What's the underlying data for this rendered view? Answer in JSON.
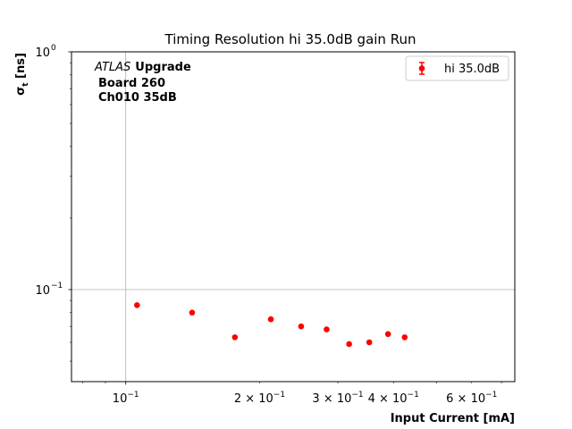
{
  "chart_data": {
    "type": "scatter",
    "title": "Timing Resolution hi 35.0dB gain Run",
    "xlabel": "Input Current [mA]",
    "ylabel_main": "σ",
    "ylabel_sub": "t",
    "ylabel_unit": " [ns]",
    "x_scale": "log",
    "y_scale": "log",
    "xlim": [
      0.0755,
      0.75
    ],
    "ylim": [
      0.041,
      1.0
    ],
    "grid": "major",
    "legend_position": "top-right",
    "annotation": {
      "line1_italic": "ATLAS",
      "line1_bold": "Upgrade",
      "line2": "Board 260",
      "line3": "Ch010 35dB"
    },
    "x_ticks": [
      {
        "value": 0.1,
        "mantissa": "10",
        "exponent": "−1"
      },
      {
        "value": 0.2,
        "mantissa": "2 × 10",
        "exponent": "−1"
      },
      {
        "value": 0.3,
        "mantissa": "3 × 10",
        "exponent": "−1"
      },
      {
        "value": 0.4,
        "mantissa": "4 × 10",
        "exponent": "−1"
      },
      {
        "value": 0.6,
        "mantissa": "6 × 10",
        "exponent": "−1"
      }
    ],
    "y_ticks": [
      {
        "value": 0.1,
        "mantissa": "10",
        "exponent": "−1"
      },
      {
        "value": 1.0,
        "mantissa": "10",
        "exponent": "0"
      }
    ],
    "series": [
      {
        "name": "hi 35.0dB",
        "color": "#ff0000",
        "points": [
          {
            "x": 0.106,
            "y": 0.086
          },
          {
            "x": 0.141,
            "y": 0.08
          },
          {
            "x": 0.176,
            "y": 0.063
          },
          {
            "x": 0.212,
            "y": 0.075
          },
          {
            "x": 0.248,
            "y": 0.07
          },
          {
            "x": 0.283,
            "y": 0.068
          },
          {
            "x": 0.318,
            "y": 0.059
          },
          {
            "x": 0.353,
            "y": 0.06
          },
          {
            "x": 0.389,
            "y": 0.065
          },
          {
            "x": 0.424,
            "y": 0.063
          }
        ]
      }
    ]
  }
}
